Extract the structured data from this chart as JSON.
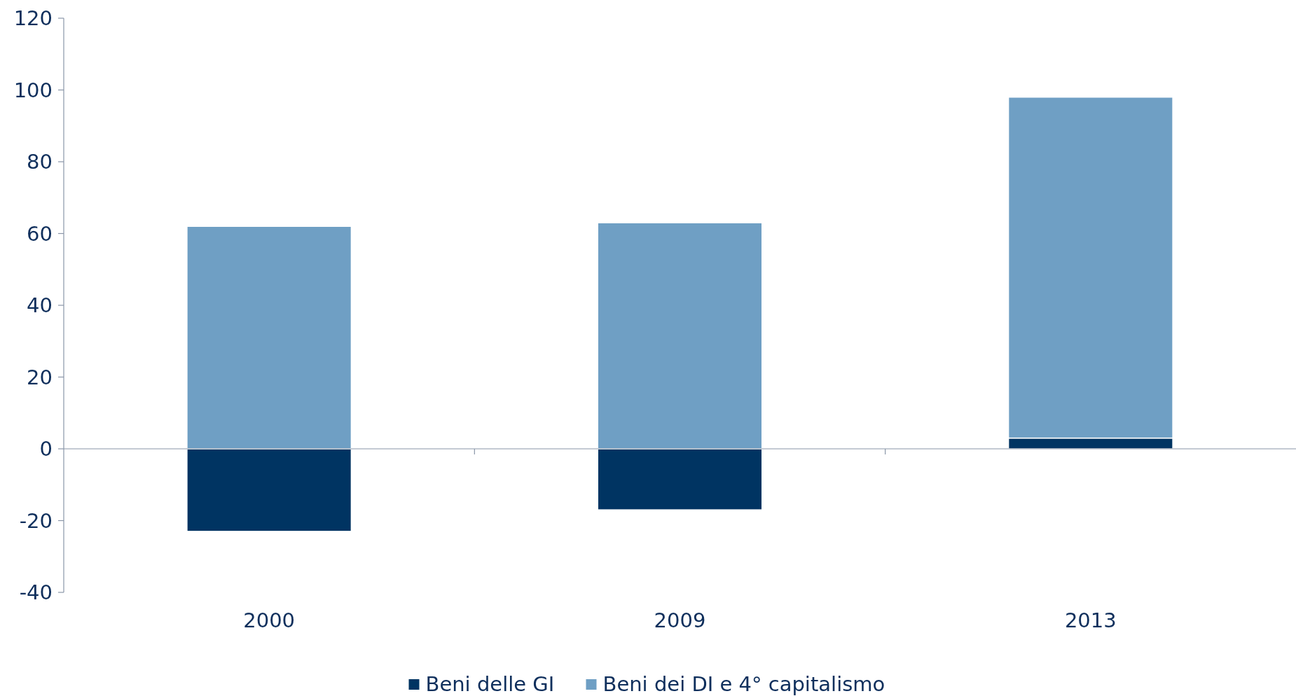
{
  "chart_data": {
    "type": "bar",
    "stacked": true,
    "categories": [
      "2000",
      "2009",
      "2013"
    ],
    "series": [
      {
        "name": "Beni delle GI",
        "color": "#003462",
        "values": [
          -23,
          -17,
          3
        ]
      },
      {
        "name": "Beni dei DI e 4° capitalismo",
        "color": "#6f9fc4",
        "values": [
          62,
          63,
          95
        ]
      }
    ],
    "ylim": [
      -40,
      120
    ],
    "yticks": [
      -40,
      -20,
      0,
      20,
      40,
      60,
      80,
      100,
      120
    ],
    "legend": "bottom"
  }
}
